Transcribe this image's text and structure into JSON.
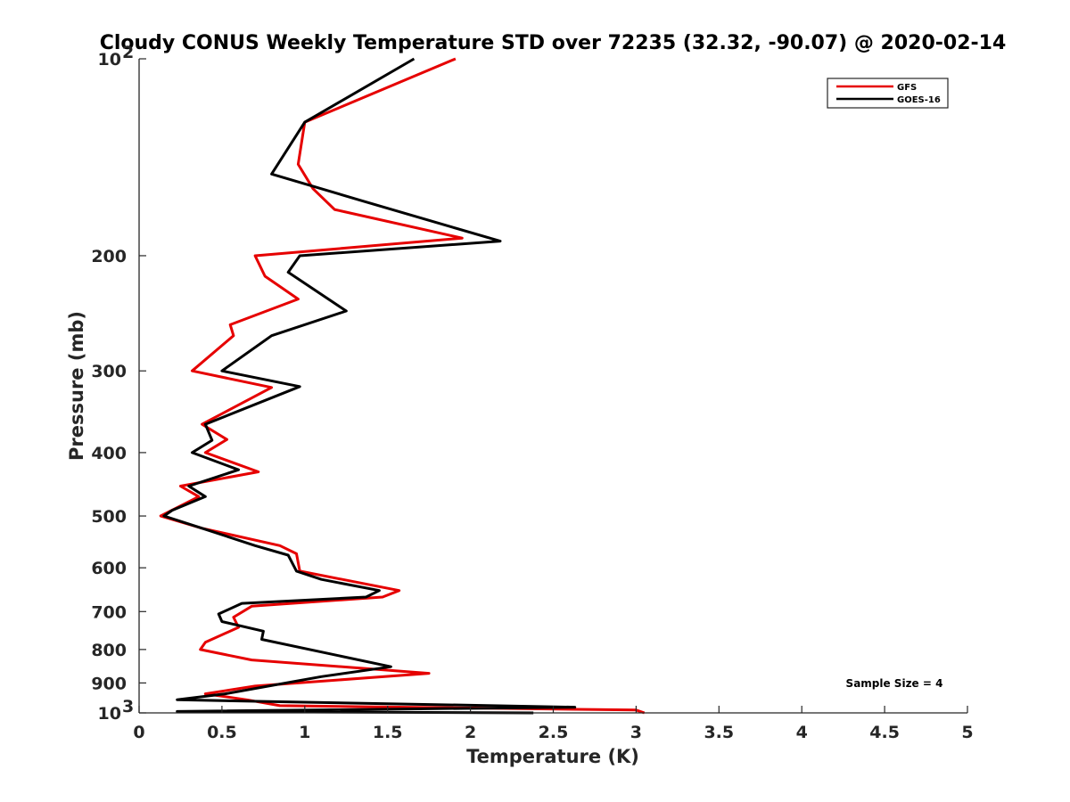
{
  "chart_data": {
    "type": "line",
    "title": "Cloudy CONUS Weekly Temperature STD over 72235 (32.32, -90.07) @ 2020-02-14",
    "xlabel": "Temperature (K)",
    "ylabel": "Pressure (mb)",
    "xlim": [
      0,
      5
    ],
    "ylim": [
      100,
      1000
    ],
    "yscale": "log",
    "y_reversed": true,
    "grid": false,
    "legend_position": "top-right",
    "x_ticks": [
      {
        "value": 0,
        "label": "0"
      },
      {
        "value": 0.5,
        "label": "0.5"
      },
      {
        "value": 1,
        "label": "1"
      },
      {
        "value": 1.5,
        "label": "1.5"
      },
      {
        "value": 2,
        "label": "2"
      },
      {
        "value": 2.5,
        "label": "2.5"
      },
      {
        "value": 3,
        "label": "3"
      },
      {
        "value": 3.5,
        "label": "3.5"
      },
      {
        "value": 4,
        "label": "4"
      },
      {
        "value": 4.5,
        "label": "4.5"
      },
      {
        "value": 5,
        "label": "5"
      }
    ],
    "y_ticks": [
      {
        "value": 100,
        "label": "10",
        "exponent": "2"
      },
      {
        "value": 200,
        "label": "200"
      },
      {
        "value": 300,
        "label": "300"
      },
      {
        "value": 400,
        "label": "400"
      },
      {
        "value": 500,
        "label": "500"
      },
      {
        "value": 600,
        "label": "600"
      },
      {
        "value": 700,
        "label": "700"
      },
      {
        "value": 800,
        "label": "800"
      },
      {
        "value": 900,
        "label": "900"
      },
      {
        "value": 1000,
        "label": "10",
        "exponent": "3"
      }
    ],
    "series": [
      {
        "name": "GFS",
        "color": "#e60000",
        "points": [
          [
            1.91,
            100
          ],
          [
            1.0,
            125
          ],
          [
            0.96,
            145
          ],
          [
            1.05,
            158
          ],
          [
            1.18,
            170
          ],
          [
            1.95,
            188
          ],
          [
            0.7,
            200
          ],
          [
            0.76,
            215
          ],
          [
            0.96,
            233
          ],
          [
            0.55,
            255
          ],
          [
            0.57,
            265
          ],
          [
            0.32,
            300
          ],
          [
            0.8,
            318
          ],
          [
            0.38,
            362
          ],
          [
            0.53,
            382
          ],
          [
            0.4,
            400
          ],
          [
            0.72,
            428
          ],
          [
            0.25,
            450
          ],
          [
            0.36,
            467
          ],
          [
            0.13,
            500
          ],
          [
            0.38,
            522
          ],
          [
            0.85,
            555
          ],
          [
            0.95,
            571
          ],
          [
            0.97,
            607
          ],
          [
            1.57,
            650
          ],
          [
            1.47,
            665
          ],
          [
            0.68,
            687
          ],
          [
            0.57,
            714
          ],
          [
            0.6,
            740
          ],
          [
            0.4,
            780
          ],
          [
            0.37,
            800
          ],
          [
            0.68,
            830
          ],
          [
            1.75,
            870
          ],
          [
            0.7,
            910
          ],
          [
            0.4,
            935
          ],
          [
            0.65,
            955
          ],
          [
            0.85,
            975
          ],
          [
            3.0,
            990
          ],
          [
            3.05,
            1000
          ]
        ]
      },
      {
        "name": "GOES-16",
        "color": "#000000",
        "points": [
          [
            1.66,
            100
          ],
          [
            1.0,
            125
          ],
          [
            0.8,
            150
          ],
          [
            1.35,
            165
          ],
          [
            2.18,
            190
          ],
          [
            0.97,
            200
          ],
          [
            0.9,
            212
          ],
          [
            1.25,
            243
          ],
          [
            0.8,
            265
          ],
          [
            0.5,
            300
          ],
          [
            0.97,
            317
          ],
          [
            0.4,
            362
          ],
          [
            0.44,
            383
          ],
          [
            0.32,
            400
          ],
          [
            0.6,
            425
          ],
          [
            0.3,
            450
          ],
          [
            0.4,
            467
          ],
          [
            0.2,
            490
          ],
          [
            0.15,
            500
          ],
          [
            0.38,
            522
          ],
          [
            0.7,
            555
          ],
          [
            0.9,
            574
          ],
          [
            0.95,
            607
          ],
          [
            1.1,
            625
          ],
          [
            1.45,
            650
          ],
          [
            1.37,
            665
          ],
          [
            0.62,
            680
          ],
          [
            0.48,
            706
          ],
          [
            0.5,
            725
          ],
          [
            0.75,
            750
          ],
          [
            0.74,
            772
          ],
          [
            1.52,
            850
          ],
          [
            1.1,
            880
          ],
          [
            0.52,
            935
          ],
          [
            0.23,
            955
          ],
          [
            2.63,
            980
          ],
          [
            0.23,
            995
          ],
          [
            2.38,
            1000
          ]
        ]
      }
    ],
    "annotation": "Sample Size = 4"
  }
}
